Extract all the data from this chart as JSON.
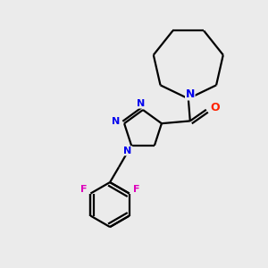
{
  "bg_color": "#ebebeb",
  "bond_color": "#000000",
  "N_color": "#0000ee",
  "O_color": "#ff2200",
  "F_color": "#dd00bb",
  "line_width": 1.6,
  "dpi": 100,
  "fig_size": [
    3.0,
    3.0
  ],
  "xlim": [
    0,
    300
  ],
  "ylim": [
    0,
    300
  ]
}
